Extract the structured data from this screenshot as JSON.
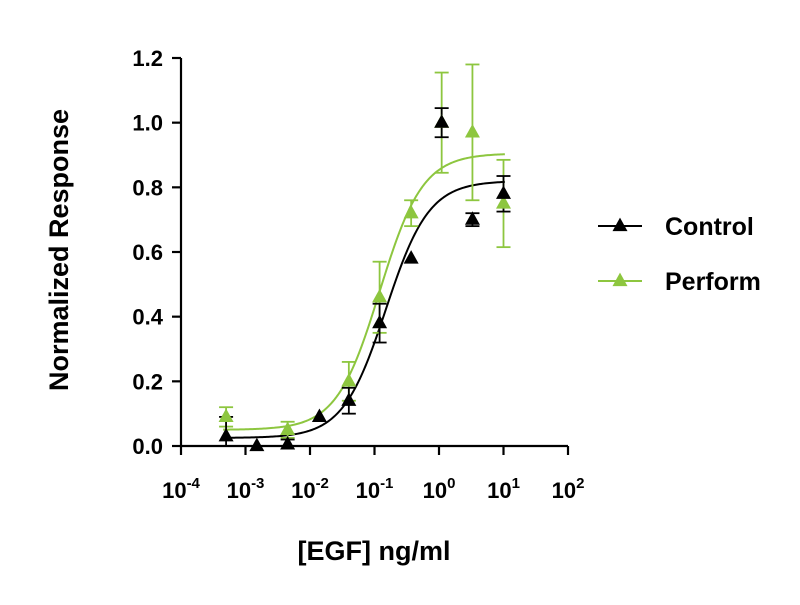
{
  "chart_data": {
    "type": "scatter",
    "title": "",
    "xlabel": "[EGF] ng/ml",
    "ylabel": "Normalized Response",
    "x_scale": "log",
    "xlim": [
      0.0001,
      100
    ],
    "ylim": [
      0,
      1.2
    ],
    "x_ticks": [
      {
        "base": "10",
        "exp": "-4"
      },
      {
        "base": "10",
        "exp": "-3"
      },
      {
        "base": "10",
        "exp": "-2"
      },
      {
        "base": "10",
        "exp": "-1"
      },
      {
        "base": "10",
        "exp": "0"
      },
      {
        "base": "10",
        "exp": "1"
      },
      {
        "base": "10",
        "exp": "2"
      }
    ],
    "y_ticks": [
      "0.0",
      "0.2",
      "0.4",
      "0.6",
      "0.8",
      "1.0",
      "1.2"
    ],
    "grid": false,
    "legend_position": "right",
    "series": [
      {
        "name": "Control",
        "color": "#000000",
        "marker": "triangle",
        "points": [
          {
            "x": 0.0005,
            "y": 0.03,
            "err": 0.06
          },
          {
            "x": 0.0015,
            "y": 0.0,
            "err": 0.0
          },
          {
            "x": 0.0045,
            "y": 0.005,
            "err": 0.015
          },
          {
            "x": 0.014,
            "y": 0.09,
            "err": 0.0
          },
          {
            "x": 0.04,
            "y": 0.14,
            "err": 0.04
          },
          {
            "x": 0.12,
            "y": 0.38,
            "err": 0.06
          },
          {
            "x": 0.37,
            "y": 0.58,
            "err": 0.0
          },
          {
            "x": 1.1,
            "y": 1.0,
            "err": 0.045
          },
          {
            "x": 3.3,
            "y": 0.7,
            "err": 0.02
          },
          {
            "x": 10,
            "y": 0.78,
            "err": 0.055
          }
        ],
        "fit": {
          "bottom": 0.025,
          "top": 0.82,
          "ec50": 0.15,
          "hill": 1.3
        }
      },
      {
        "name": "Perform",
        "color": "#8dc63f",
        "marker": "triangle",
        "points": [
          {
            "x": 0.0005,
            "y": 0.09,
            "err": 0.03
          },
          {
            "x": 0.0045,
            "y": 0.05,
            "err": 0.025
          },
          {
            "x": 0.04,
            "y": 0.2,
            "err": 0.06
          },
          {
            "x": 0.12,
            "y": 0.46,
            "err": 0.11
          },
          {
            "x": 0.37,
            "y": 0.72,
            "err": 0.04
          },
          {
            "x": 1.1,
            "y": 1.0,
            "err": 0.155
          },
          {
            "x": 3.3,
            "y": 0.97,
            "err": 0.21
          },
          {
            "x": 10,
            "y": 0.75,
            "err": 0.135
          }
        ],
        "fit": {
          "bottom": 0.05,
          "top": 0.905,
          "ec50": 0.12,
          "hill": 1.3
        }
      }
    ]
  }
}
